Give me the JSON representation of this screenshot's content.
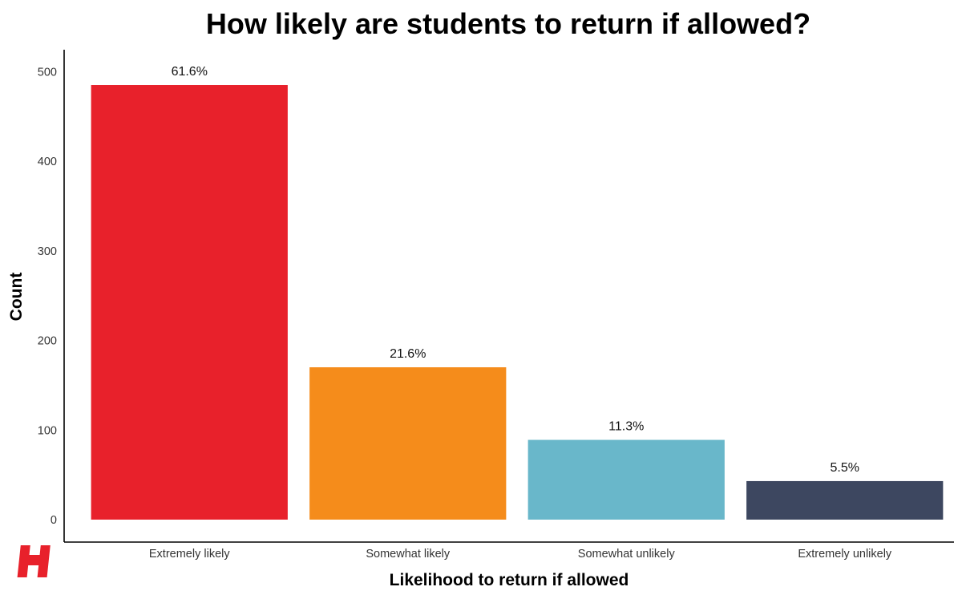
{
  "chart_data": {
    "type": "bar",
    "title": "How likely are students to return if allowed?",
    "xlabel": "Likelihood to return if allowed",
    "ylabel": "Count",
    "categories": [
      "Extremely likely",
      "Somewhat likely",
      "Somewhat unlikely",
      "Extremely unlikely"
    ],
    "values": [
      485,
      170,
      89,
      43
    ],
    "data_labels": [
      "61.6%",
      "21.6%",
      "11.3%",
      "5.5%"
    ],
    "colors": [
      "#e8212b",
      "#f58c1b",
      "#69b7ca",
      "#3d4760"
    ],
    "ylim": [
      0,
      528
    ],
    "yticks": [
      0,
      100,
      200,
      300,
      400,
      500
    ],
    "grid": false,
    "legend": "none"
  },
  "logo": {
    "name": "h-logo-icon",
    "color": "#e8212b"
  }
}
